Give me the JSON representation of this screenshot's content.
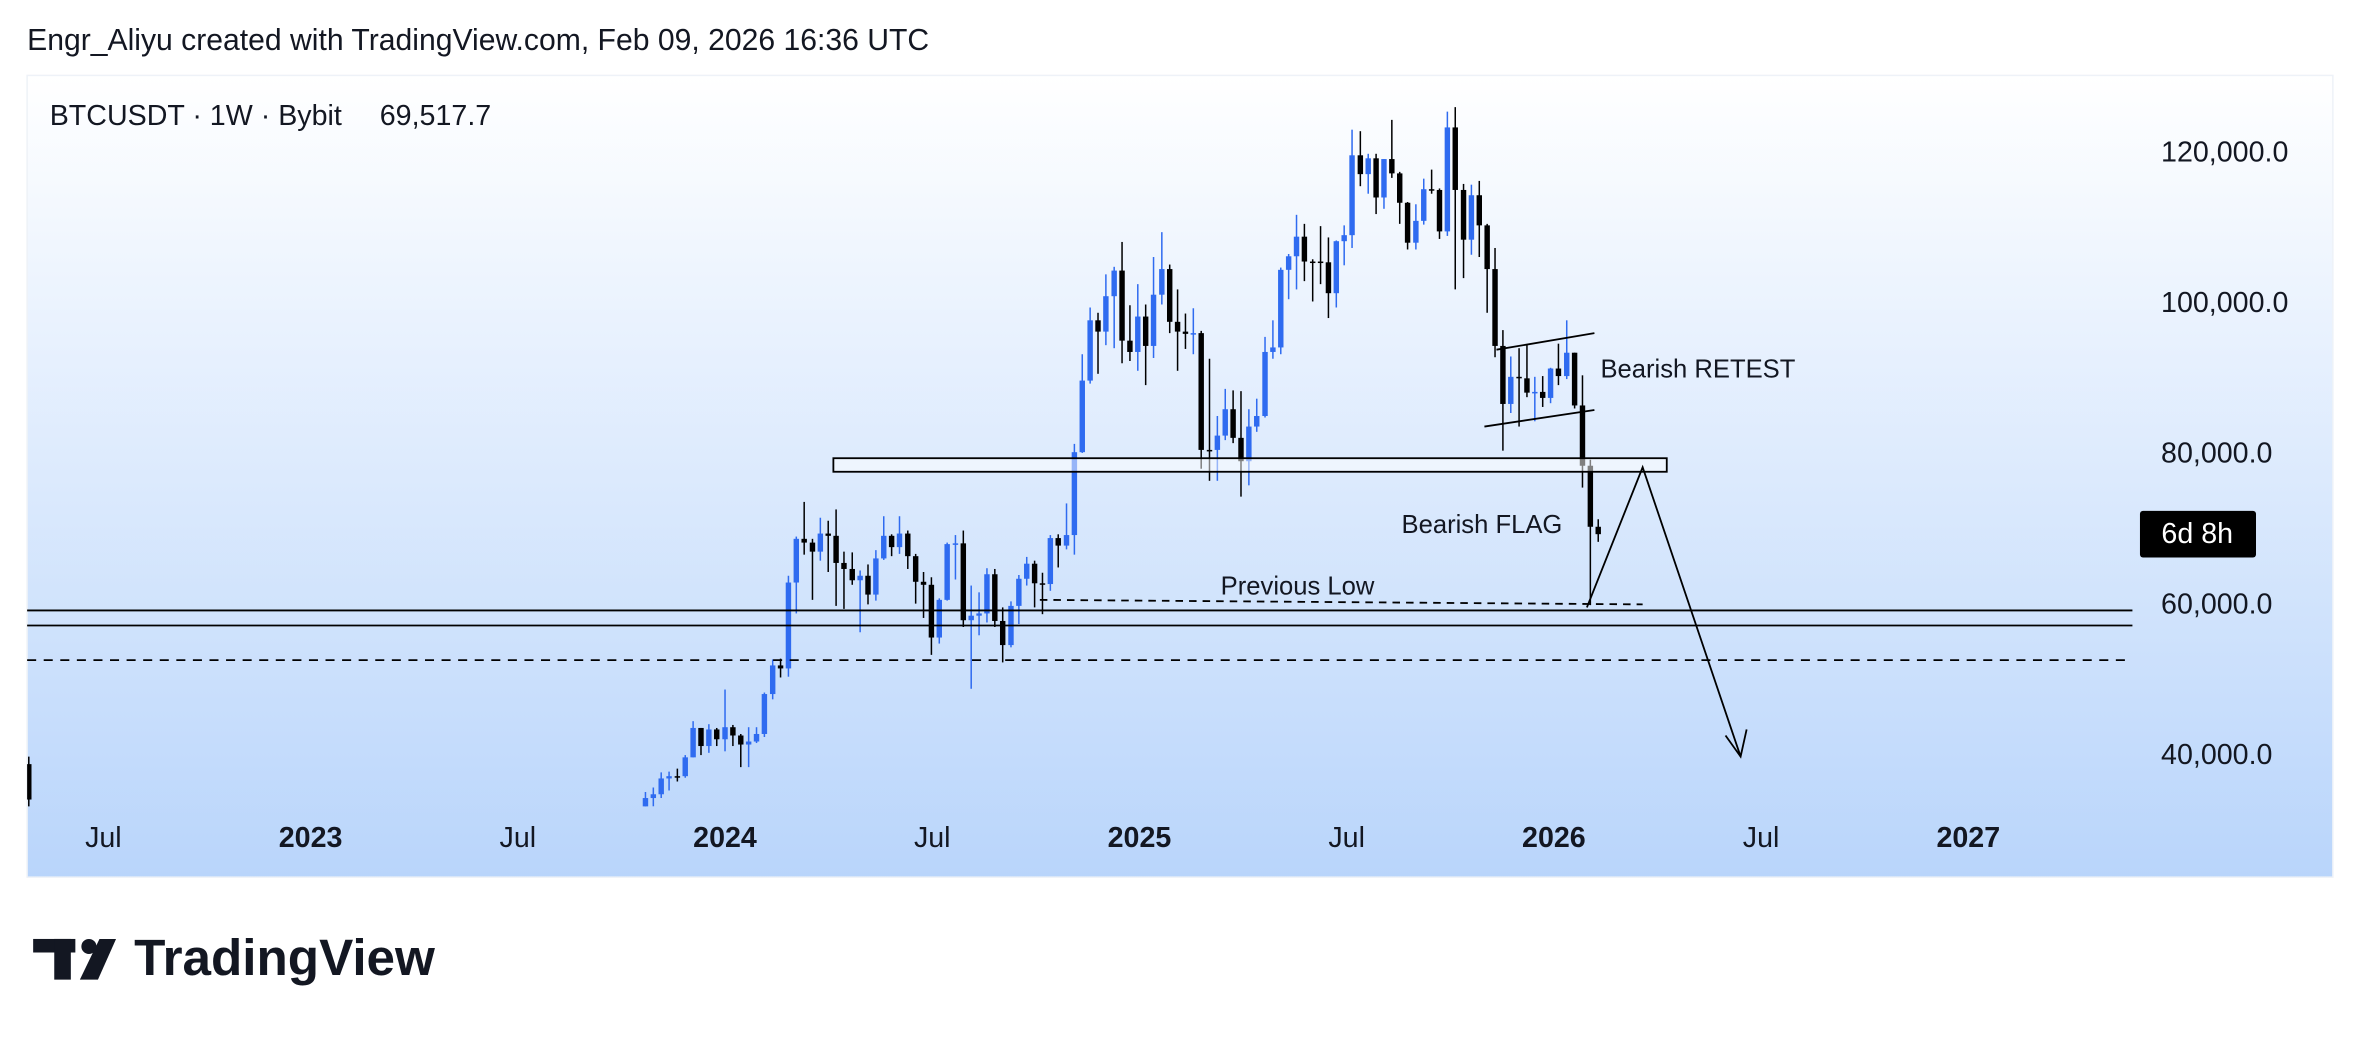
{
  "chart_data": {
    "type": "candlestick",
    "attribution": "Engr_Aliyu created with TradingView.com, Feb 09, 2026 16:36 UTC",
    "symbol": "BTCUSDT · 1W · Bybit",
    "last_price": "69,517.7",
    "countdown": "6d 8h",
    "annotations": [
      "Bearish RETEST",
      "Bearish FLAG",
      "Previous Low"
    ],
    "brand": "TradingView",
    "up_color": "#2f6bf0",
    "down_color": "#000000",
    "xlim": [
      2022.316,
      2027.396
    ],
    "xticks": [
      {
        "value": 2022.5,
        "label": "Jul"
      },
      2023,
      {
        "value": 2023.5,
        "label": "Jul"
      },
      2024,
      {
        "value": 2024.5,
        "label": "Jul"
      },
      2025,
      {
        "value": 2025.5,
        "label": "Jul"
      },
      2026,
      {
        "value": 2026.5,
        "label": "Jul"
      },
      2027
    ],
    "ylim": [
      33400,
      130400
    ],
    "yticks": [
      {
        "value": 40000,
        "label": "40,000.0"
      },
      {
        "value": 60000,
        "label": "60,000.0"
      },
      {
        "value": 80000,
        "label": "80,000.0"
      },
      {
        "value": 100000,
        "label": "100,000.0"
      },
      {
        "value": 120000,
        "label": "120,000.0"
      }
    ],
    "x": [
      2022.32,
      2023.808,
      2023.827,
      2023.846,
      2023.865,
      2023.885,
      2023.904,
      2023.923,
      2023.942,
      2023.961,
      2023.98,
      2024.0,
      2024.019,
      2024.038,
      2024.057,
      2024.076,
      2024.095,
      2024.115,
      2024.134,
      2024.153,
      2024.172,
      2024.191,
      2024.211,
      2024.23,
      2024.249,
      2024.268,
      2024.287,
      2024.307,
      2024.326,
      2024.345,
      2024.364,
      2024.383,
      2024.402,
      2024.421,
      2024.441,
      2024.46,
      2024.479,
      2024.498,
      2024.517,
      2024.536,
      2024.556,
      2024.575,
      2024.594,
      2024.613,
      2024.632,
      2024.651,
      2024.67,
      2024.69,
      2024.709,
      2024.728,
      2024.747,
      2024.766,
      2024.785,
      2024.804,
      2024.824,
      2024.843,
      2024.862,
      2024.881,
      2024.9,
      2024.919,
      2024.939,
      2024.958,
      2024.977,
      2024.996,
      2025.015,
      2025.034,
      2025.054,
      2025.073,
      2025.092,
      2025.111,
      2025.13,
      2025.149,
      2025.169,
      2025.188,
      2025.207,
      2025.226,
      2025.245,
      2025.264,
      2025.283,
      2025.303,
      2025.322,
      2025.341,
      2025.36,
      2025.379,
      2025.398,
      2025.418,
      2025.437,
      2025.456,
      2025.475,
      2025.494,
      2025.513,
      2025.533,
      2025.552,
      2025.571,
      2025.59,
      2025.609,
      2025.628,
      2025.647,
      2025.667,
      2025.686,
      2025.705,
      2025.724,
      2025.743,
      2025.762,
      2025.782,
      2025.801,
      2025.82,
      2025.839,
      2025.858,
      2025.877,
      2025.896,
      2025.916,
      2025.935,
      2025.954,
      2025.973,
      2025.992,
      2026.011,
      2026.031,
      2026.05,
      2026.069,
      2026.088,
      2026.107
    ],
    "open": [
      39000,
      30000,
      34500,
      35000,
      37100,
      37400,
      37400,
      39900,
      43800,
      41400,
      43600,
      42300,
      43900,
      42800,
      41600,
      42000,
      43000,
      48300,
      52100,
      51700,
      63100,
      68900,
      68400,
      67200,
      69600,
      69300,
      65700,
      64900,
      63400,
      64000,
      61500,
      66300,
      69300,
      67800,
      69600,
      66600,
      63200,
      62800,
      55800,
      60800,
      68200,
      68300,
      58100,
      58700,
      59000,
      64200,
      58000,
      54800,
      60000,
      63600,
      65600,
      63000,
      62900,
      69000,
      68000,
      69400,
      80400,
      89900,
      97900,
      96400,
      101100,
      104500,
      95200,
      93700,
      98400,
      94500,
      101300,
      104700,
      97700,
      96400,
      96100,
      96200,
      80700,
      80700,
      82600,
      86100,
      82300,
      79200,
      83800,
      85200,
      93700,
      94300,
      104600,
      106400,
      109000,
      105700,
      105700,
      105600,
      101500,
      108400,
      109200,
      119800,
      117300,
      119400,
      114200,
      119300,
      117400,
      113500,
      108200,
      111100,
      115300,
      115200,
      109700,
      123500,
      115200,
      108600,
      114500,
      110500,
      104700,
      94500,
      86800,
      90400,
      90200,
      88300,
      88400,
      87600,
      91500,
      90500,
      93600,
      86600,
      78600,
      70500
    ],
    "high": [
      40000,
      35300,
      35900,
      37900,
      38000,
      38400,
      40200,
      44700,
      43800,
      44300,
      43800,
      48900,
      44200,
      43000,
      43900,
      43900,
      48500,
      52900,
      53000,
      64000,
      69200,
      73800,
      68900,
      71700,
      71300,
      72800,
      67200,
      67100,
      64700,
      65500,
      67400,
      71900,
      69500,
      71900,
      70000,
      66900,
      64500,
      63800,
      61000,
      68400,
      69400,
      70000,
      62700,
      61800,
      65000,
      64900,
      59800,
      60600,
      64100,
      66500,
      66000,
      64400,
      69400,
      69500,
      73600,
      81500,
      93400,
      99600,
      98900,
      104000,
      105000,
      108300,
      99900,
      102700,
      100000,
      106300,
      109600,
      105300,
      102000,
      98800,
      99500,
      96500,
      92800,
      85200,
      88800,
      88600,
      88500,
      86100,
      87500,
      95700,
      97900,
      104900,
      106700,
      111900,
      110700,
      106000,
      110400,
      108900,
      108500,
      110500,
      123200,
      123000,
      120000,
      120000,
      119300,
      124500,
      117600,
      113600,
      113300,
      116700,
      117900,
      115400,
      125600,
      126200,
      116000,
      115900,
      116400,
      110700,
      107500,
      96600,
      93100,
      94200,
      94600,
      90400,
      90500,
      91600,
      94800,
      97900,
      93600,
      90600,
      79400,
      71500
    ],
    "low": [
      33000,
      29900,
      33400,
      34500,
      35500,
      36700,
      37200,
      39900,
      40200,
      40500,
      41400,
      40700,
      41400,
      38600,
      38600,
      41800,
      42600,
      47600,
      50500,
      50600,
      59000,
      66800,
      60800,
      66000,
      64500,
      60000,
      59600,
      62800,
      56500,
      60200,
      60700,
      66100,
      66600,
      66900,
      64900,
      60300,
      58400,
      53500,
      55000,
      60700,
      63500,
      57200,
      49000,
      56100,
      57800,
      57200,
      52500,
      54500,
      57600,
      62700,
      59800,
      58900,
      62000,
      65100,
      67500,
      66800,
      80300,
      89500,
      90800,
      94600,
      94200,
      92200,
      92500,
      91200,
      89300,
      92900,
      100000,
      96200,
      91200,
      94100,
      93400,
      78200,
      76600,
      76600,
      82000,
      81600,
      74500,
      76000,
      83100,
      85000,
      92800,
      93400,
      100700,
      102000,
      103100,
      100400,
      102700,
      98200,
      99600,
      105200,
      107500,
      115700,
      114700,
      112000,
      112700,
      116800,
      110700,
      107300,
      107300,
      110600,
      114700,
      108700,
      109100,
      102000,
      103500,
      106600,
      106300,
      98900,
      93000,
      80600,
      85600,
      83800,
      87700,
      84500,
      86400,
      86900,
      89300,
      90100,
      86200,
      75700,
      60100,
      68500
    ],
    "close": [
      34300,
      34500,
      35000,
      37100,
      37400,
      37400,
      39900,
      43800,
      41400,
      43600,
      42300,
      43900,
      42800,
      41600,
      42000,
      43000,
      48300,
      52100,
      51700,
      63100,
      68900,
      68400,
      67200,
      69600,
      69300,
      65700,
      64900,
      63400,
      64000,
      61500,
      66300,
      69300,
      67800,
      69600,
      66600,
      63200,
      62800,
      55800,
      60800,
      68200,
      68300,
      58100,
      58700,
      59000,
      64200,
      58000,
      54800,
      60000,
      63600,
      65600,
      63000,
      62900,
      69000,
      68000,
      69400,
      80400,
      89900,
      97900,
      96400,
      101100,
      104500,
      95200,
      93700,
      98400,
      94500,
      101300,
      104700,
      97700,
      96400,
      96100,
      96200,
      80700,
      80700,
      82600,
      86100,
      82300,
      79200,
      83800,
      85200,
      93700,
      94300,
      104600,
      106400,
      109000,
      105700,
      105700,
      105600,
      101500,
      108400,
      109200,
      119800,
      117300,
      119400,
      114200,
      119300,
      117400,
      113500,
      108200,
      111100,
      115300,
      115200,
      109700,
      123500,
      115200,
      108600,
      114500,
      110500,
      104700,
      94500,
      86800,
      90400,
      90200,
      88300,
      88400,
      87600,
      91500,
      90500,
      93600,
      86600,
      78600,
      70500,
      69517.7
    ]
  }
}
